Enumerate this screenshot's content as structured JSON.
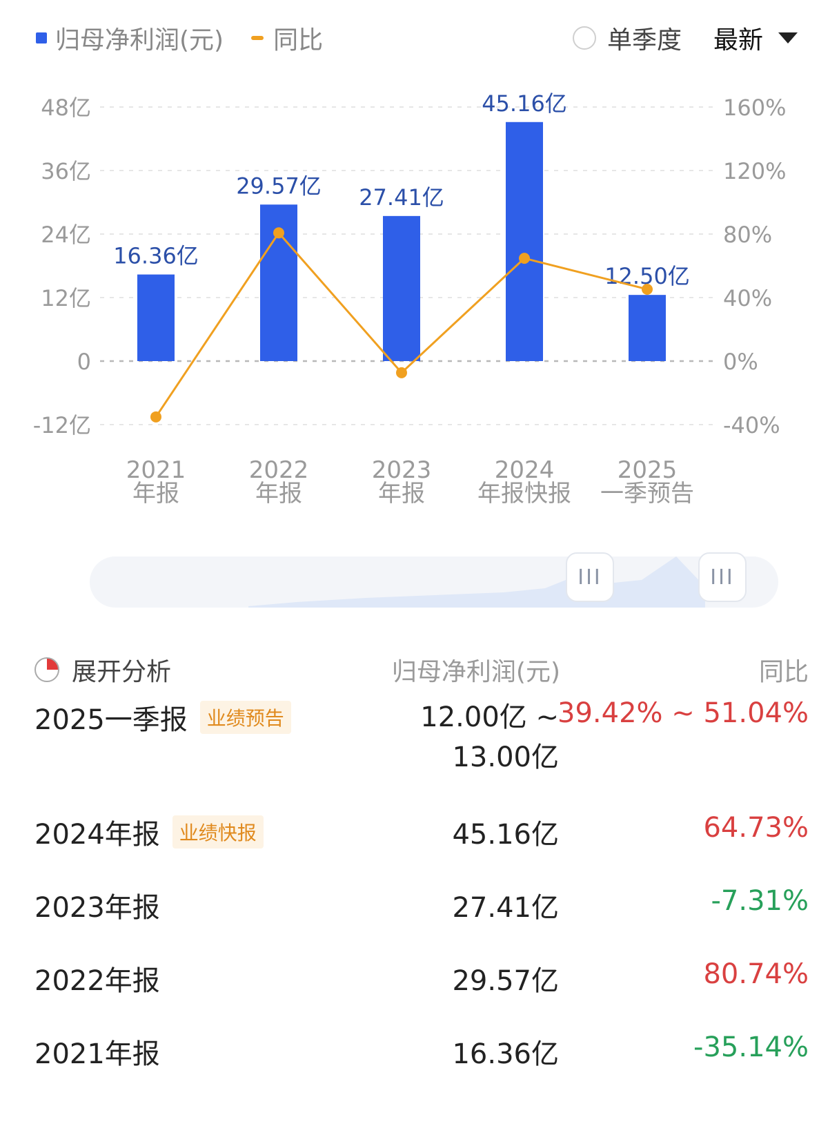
{
  "header": {
    "legend_bar_label": "归母净利润(元)",
    "legend_line_label": "同比",
    "single_quarter_label": "单季度",
    "latest_label": "最新"
  },
  "colors": {
    "bar": "#2f5fe8",
    "line": "#f0a020",
    "positive": "#d94040",
    "negative": "#27a05a"
  },
  "chart_data": {
    "type": "bar",
    "categories": [
      "2021\n年报",
      "2022\n年报",
      "2023\n年报",
      "2024\n年报快报",
      "2025\n一季预告"
    ],
    "series": [
      {
        "name": "归母净利润(元)",
        "type": "bar",
        "axis": "left",
        "values": [
          16.36,
          29.57,
          27.41,
          45.16,
          12.5
        ],
        "labels": [
          "16.36亿",
          "29.57亿",
          "27.41亿",
          "45.16亿",
          "12.50亿"
        ]
      },
      {
        "name": "同比",
        "type": "line",
        "axis": "right",
        "values": [
          -35.14,
          80.74,
          -7.31,
          64.73,
          45.23
        ]
      }
    ],
    "left_axis": {
      "ticks": [
        48,
        36,
        24,
        12,
        0,
        -12
      ],
      "tick_labels": [
        "48亿",
        "36亿",
        "24亿",
        "12亿",
        "0",
        "-12亿"
      ],
      "range": [
        -12,
        48
      ]
    },
    "right_axis": {
      "ticks": [
        160,
        120,
        80,
        40,
        0,
        -40
      ],
      "tick_labels": [
        "160%",
        "120%",
        "80%",
        "40%",
        "0%",
        "-40%"
      ],
      "range": [
        -40,
        160
      ]
    },
    "grid": true,
    "legend": "top-left"
  },
  "slider": {
    "handle_glyph": "III"
  },
  "table": {
    "header": {
      "analysis": "展开分析",
      "value": "归母净利润(元)",
      "yoy": "同比"
    },
    "rows": [
      {
        "period": "2025一季报",
        "tag": "业绩预告",
        "value_line1": "12.00亿 ~",
        "value_line2": "13.00亿",
        "yoy": "39.42% ~ 51.04%",
        "trend": "up"
      },
      {
        "period": "2024年报",
        "tag": "业绩快报",
        "value_line1": "45.16亿",
        "value_line2": "",
        "yoy": "64.73%",
        "trend": "up"
      },
      {
        "period": "2023年报",
        "tag": "",
        "value_line1": "27.41亿",
        "value_line2": "",
        "yoy": "-7.31%",
        "trend": "down"
      },
      {
        "period": "2022年报",
        "tag": "",
        "value_line1": "29.57亿",
        "value_line2": "",
        "yoy": "80.74%",
        "trend": "up"
      },
      {
        "period": "2021年报",
        "tag": "",
        "value_line1": "16.36亿",
        "value_line2": "",
        "yoy": "-35.14%",
        "trend": "down"
      }
    ]
  }
}
